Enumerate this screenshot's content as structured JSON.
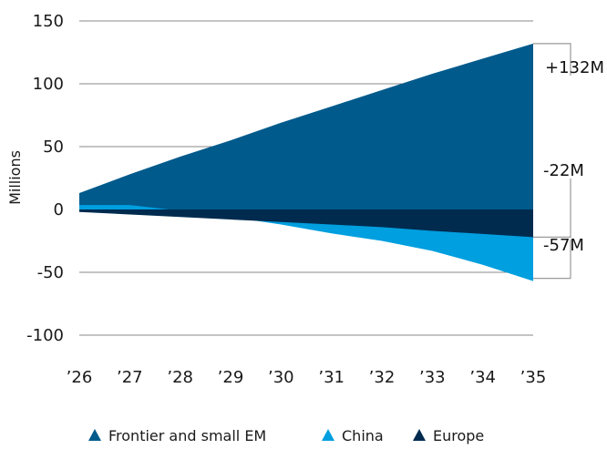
{
  "chart_data": {
    "type": "area",
    "ylabel": "Millions",
    "ylim": [
      -100,
      150
    ],
    "yticks": [
      150,
      100,
      50,
      0,
      -50,
      -100
    ],
    "ytick_labels": [
      "150",
      "100",
      "50",
      "0",
      "-50",
      "-100"
    ],
    "categories": [
      "’26",
      "’27",
      "’28",
      "’29",
      "’30",
      "’31",
      "’32",
      "’33",
      "’34",
      "’35"
    ],
    "series": [
      {
        "name": "Frontier and small EM",
        "color": "#005a8c",
        "values": [
          13,
          28,
          42,
          55,
          69,
          82,
          95,
          108,
          120,
          132
        ]
      },
      {
        "name": "China",
        "color": "#009fdf",
        "values": [
          3.5,
          3.5,
          -1,
          -6,
          -12,
          -19,
          -25,
          -33,
          -44,
          -57
        ]
      },
      {
        "name": "Europe",
        "color": "#002b4f",
        "values": [
          -2,
          -4,
          -6,
          -8,
          -10,
          -12,
          -14,
          -17,
          -19.5,
          -22
        ]
      }
    ],
    "annotations": [
      {
        "text": "+132M",
        "series": "Frontier and small EM",
        "value": 132
      },
      {
        "text": "-22M",
        "series": "Europe",
        "value": -22
      },
      {
        "text": "-57M",
        "series": "China",
        "value": -57
      }
    ],
    "grid": true,
    "legend_position": "bottom-center"
  }
}
